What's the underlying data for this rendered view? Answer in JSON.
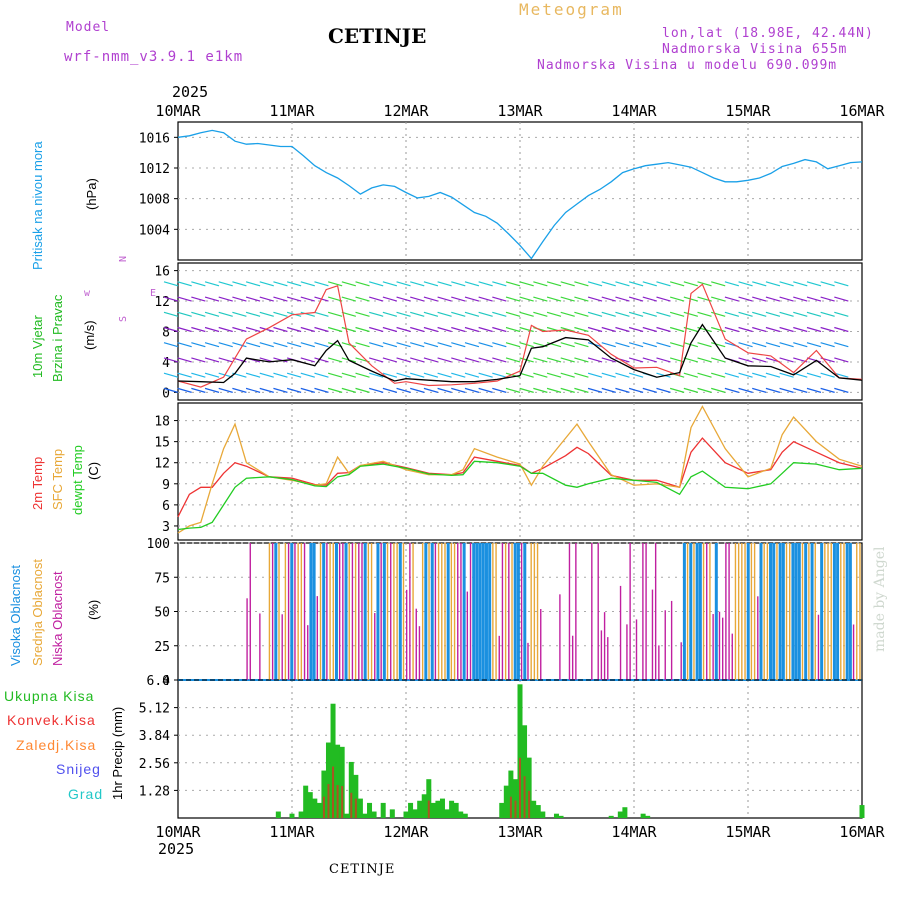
{
  "header": {
    "model_label": "Model",
    "model_name": "wrf-nmm_v3.9.1 e1km",
    "station": "CETINJE",
    "chart_kind": "Meteogram",
    "lonlat": "lon,lat (18.98E, 42.44N)",
    "altitude": "Nadmorska Visina 655m",
    "model_altitude": "Nadmorska Visina u modelu 690.099m",
    "year_top": "2025",
    "year_bottom": "2025",
    "footer_station": "CETINJE",
    "watermark": "made by Angel"
  },
  "panel_labels": {
    "pressure": "Pritisak na nivou mora",
    "pressure_unit": "(hPa)",
    "wind_a": "10m Vjetar",
    "wind_b": "Brzina i Pravac",
    "wind_unit": "(m/s)",
    "temp_a": "2m Temp",
    "temp_b": "SFC Temp",
    "temp_c": "dewpt Temp",
    "temp_unit": "(C)",
    "cloud_a": "Visoka Oblacnost",
    "cloud_b": "Srednja Oblacnost",
    "cloud_c": "Niska Oblacnost",
    "cloud_unit": "(%)",
    "precip_unit": "1hr Precip (mm)",
    "compass_n": "N",
    "compass_s": "S",
    "compass_w": "w",
    "compass_e": "E"
  },
  "precip_legend": [
    {
      "label": "Ukupna Kisa",
      "color": "#22bb22"
    },
    {
      "label": "Konvek.Kisa",
      "color": "#ee3333"
    },
    {
      "label": "Zaledj.Kisa",
      "color": "#ff8833"
    },
    {
      "label": "Snijeg",
      "color": "#5050ee"
    },
    {
      "label": "Grad",
      "color": "#22c8c8"
    }
  ],
  "colors": {
    "pressure": "#1aa0e8",
    "t2m": "#ee3333",
    "tsfc": "#e8a838",
    "dewpt": "#22cc22",
    "wind_speed": "#000000",
    "gust": "#ee4444",
    "cloud_high": "#1a90e0",
    "cloud_mid": "#e8a838",
    "cloud_low": "#c020a0"
  },
  "chart_data": {
    "type": "line",
    "x_labels": [
      "10MAR",
      "11MAR",
      "12MAR",
      "13MAR",
      "14MAR",
      "15MAR",
      "16MAR"
    ],
    "panels": [
      {
        "name": "pressure",
        "ylim": [
          1000,
          1018
        ],
        "yticks": [
          "1004",
          "1008",
          "1012",
          "1016"
        ],
        "series": [
          {
            "x": [
              0,
              0.1,
              0.2,
              0.3,
              0.4,
              0.5,
              0.6,
              0.7,
              0.8,
              0.9,
              1.0,
              1.1,
              1.2,
              1.3,
              1.4,
              1.5,
              1.6,
              1.7,
              1.8,
              1.9,
              2.0,
              2.1,
              2.2,
              2.3,
              2.4,
              2.5,
              2.6,
              2.7,
              2.8,
              2.9,
              3.0,
              3.1,
              3.2,
              3.3,
              3.4,
              3.5,
              3.6,
              3.7,
              3.8,
              3.9,
              4.0,
              4.1,
              4.2,
              4.3,
              4.4,
              4.5,
              4.6,
              4.7,
              4.8,
              4.9,
              5.0,
              5.1,
              5.2,
              5.3,
              5.4,
              5.5,
              5.6,
              5.7,
              5.8,
              5.9,
              6.0
            ],
            "y": [
              1016,
              1016.2,
              1016.6,
              1016.9,
              1016.6,
              1015.5,
              1015.1,
              1015.2,
              1015,
              1014.8,
              1014.8,
              1013.6,
              1012.3,
              1011.4,
              1010.7,
              1009.7,
              1008.6,
              1009.4,
              1009.8,
              1009.6,
              1008.8,
              1008.1,
              1008.3,
              1008.8,
              1008.2,
              1007.2,
              1006.2,
              1005.7,
              1004.8,
              1003.4,
              1001.9,
              1000.2,
              1002.4,
              1004.5,
              1006.2,
              1007.3,
              1008.4,
              1009.2,
              1010.2,
              1011.4,
              1011.9,
              1012.3,
              1012.5,
              1012.7,
              1012.4,
              1012.1,
              1011.4,
              1010.7,
              1010.2,
              1010.2,
              1010.4,
              1010.7,
              1011.3,
              1012.2,
              1012.6,
              1013.1,
              1012.8,
              1011.9,
              1012.3,
              1012.7,
              1012.8
            ]
          }
        ]
      },
      {
        "name": "wind",
        "ylim": [
          -1,
          17
        ],
        "yticks": [
          "0",
          "4",
          "8",
          "12",
          "16"
        ],
        "series": [
          {
            "name": "speed",
            "x": [
              0,
              0.2,
              0.4,
              0.5,
              0.6,
              0.8,
              1.0,
              1.2,
              1.3,
              1.4,
              1.5,
              1.7,
              1.9,
              2.0,
              2.2,
              2.4,
              2.6,
              2.8,
              3.0,
              3.1,
              3.2,
              3.4,
              3.6,
              3.8,
              4.0,
              4.2,
              4.4,
              4.5,
              4.6,
              4.8,
              5.0,
              5.2,
              5.4,
              5.6,
              5.8,
              6.0
            ],
            "y": [
              1.5,
              1.4,
              1.3,
              2.5,
              4.5,
              4.0,
              4.3,
              3.5,
              5.5,
              6.8,
              4.2,
              2.8,
              1.5,
              1.8,
              1.6,
              1.4,
              1.4,
              1.7,
              2.2,
              5.8,
              6.0,
              7.2,
              6.9,
              4.5,
              3.0,
              2.0,
              2.6,
              6.5,
              8.9,
              4.5,
              3.5,
              3.4,
              2.3,
              4.2,
              1.9,
              1.6
            ]
          },
          {
            "name": "gust",
            "x": [
              0,
              0.2,
              0.4,
              0.5,
              0.6,
              0.8,
              1.0,
              1.2,
              1.3,
              1.4,
              1.5,
              1.7,
              1.9,
              2.0,
              2.2,
              2.4,
              2.6,
              2.8,
              3.0,
              3.1,
              3.2,
              3.4,
              3.6,
              3.8,
              4.0,
              4.2,
              4.4,
              4.5,
              4.6,
              4.8,
              5.0,
              5.2,
              5.4,
              5.6,
              5.8,
              6.0
            ],
            "y": [
              1.5,
              0.7,
              2.0,
              4.5,
              7.0,
              8.5,
              10.2,
              10.5,
              13.5,
              14.0,
              6.5,
              3.5,
              1.2,
              1.4,
              0.9,
              1.0,
              1.2,
              1.5,
              2.8,
              8.8,
              8.0,
              8.2,
              7.5,
              5.0,
              3.2,
              3.3,
              2.2,
              13.0,
              14.2,
              7.0,
              5.2,
              4.8,
              2.6,
              5.5,
              1.9,
              1.7
            ]
          }
        ]
      },
      {
        "name": "temperature",
        "ylim": [
          1,
          20.5
        ],
        "yticks": [
          "3",
          "6",
          "9",
          "12",
          "15",
          "18"
        ],
        "series": [
          {
            "name": "t2m",
            "x": [
              0,
              0.1,
              0.2,
              0.3,
              0.4,
              0.5,
              0.6,
              0.8,
              1.0,
              1.2,
              1.3,
              1.4,
              1.5,
              1.6,
              1.8,
              2.0,
              2.2,
              2.4,
              2.5,
              2.6,
              2.8,
              3.0,
              3.1,
              3.2,
              3.4,
              3.5,
              3.6,
              3.8,
              4.0,
              4.2,
              4.4,
              4.5,
              4.6,
              4.8,
              5.0,
              5.2,
              5.3,
              5.4,
              5.6,
              5.8,
              6.0
            ],
            "y": [
              4.3,
              7.5,
              8.5,
              8.5,
              10.5,
              12.0,
              11.5,
              10.0,
              9.8,
              8.9,
              8.8,
              10.5,
              10.6,
              11.6,
              12.0,
              11.3,
              10.5,
              10.3,
              10.6,
              12.8,
              12.2,
              11.6,
              10.5,
              11.2,
              13.0,
              14.2,
              13.3,
              10.2,
              9.5,
              9.5,
              8.5,
              13.5,
              15.5,
              12.0,
              10.5,
              11.0,
              13.5,
              15.0,
              13.5,
              12.0,
              11.2
            ]
          },
          {
            "name": "tsfc",
            "x": [
              0,
              0.1,
              0.2,
              0.3,
              0.4,
              0.5,
              0.6,
              0.8,
              1.0,
              1.2,
              1.3,
              1.4,
              1.5,
              1.6,
              1.8,
              2.0,
              2.2,
              2.4,
              2.5,
              2.6,
              2.8,
              3.0,
              3.1,
              3.2,
              3.4,
              3.5,
              3.6,
              3.8,
              4.0,
              4.2,
              4.4,
              4.5,
              4.6,
              4.8,
              5.0,
              5.2,
              5.3,
              5.4,
              5.6,
              5.8,
              6.0
            ],
            "y": [
              2.0,
              3.0,
              3.5,
              9.0,
              14.0,
              17.5,
              12.0,
              10.0,
              9.5,
              8.8,
              9.0,
              12.8,
              10.5,
              11.6,
              12.2,
              11.0,
              10.3,
              10.3,
              11.0,
              14.0,
              12.8,
              11.8,
              8.8,
              11.5,
              15.5,
              17.5,
              15.0,
              10.3,
              8.8,
              9.0,
              8.5,
              17.0,
              20.0,
              14.0,
              10.0,
              11.2,
              16.0,
              18.5,
              15.0,
              12.5,
              11.5
            ]
          },
          {
            "name": "dewpt",
            "x": [
              0,
              0.1,
              0.2,
              0.3,
              0.4,
              0.5,
              0.6,
              0.8,
              1.0,
              1.2,
              1.3,
              1.4,
              1.5,
              1.6,
              1.8,
              2.0,
              2.2,
              2.4,
              2.5,
              2.6,
              2.8,
              3.0,
              3.1,
              3.2,
              3.4,
              3.5,
              3.6,
              3.8,
              4.0,
              4.2,
              4.4,
              4.5,
              4.6,
              4.8,
              5.0,
              5.2,
              5.3,
              5.4,
              5.6,
              5.8,
              6.0
            ],
            "y": [
              2.5,
              2.7,
              2.8,
              3.5,
              6.0,
              8.5,
              9.8,
              10.0,
              9.6,
              8.7,
              8.6,
              10.0,
              10.3,
              11.5,
              11.8,
              11.2,
              10.4,
              10.2,
              10.3,
              12.2,
              12.0,
              11.5,
              10.5,
              10.5,
              8.8,
              8.5,
              9.0,
              9.8,
              9.5,
              9.2,
              7.5,
              10.0,
              10.8,
              8.5,
              8.3,
              9.0,
              10.5,
              12.0,
              11.8,
              11.0,
              11.2
            ]
          }
        ]
      },
      {
        "name": "cloud",
        "ylim": [
          0,
          100
        ],
        "yticks": [
          "0",
          "25",
          "50",
          "75",
          "100"
        ],
        "note": "dense vertical bars; most columns at 100% in overcast periods"
      },
      {
        "name": "precip",
        "ylim": [
          0,
          6.4
        ],
        "yticks": [
          "1.28",
          "2.56",
          "3.84",
          "5.12",
          "6.4"
        ],
        "series": [
          {
            "name": "Ukupna Kisa",
            "x": [
              0.88,
              1.0,
              1.08,
              1.12,
              1.16,
              1.2,
              1.24,
              1.28,
              1.32,
              1.36,
              1.4,
              1.44,
              1.48,
              1.52,
              1.56,
              1.6,
              1.64,
              1.68,
              1.72,
              1.8,
              1.88,
              2.0,
              2.04,
              2.08,
              2.12,
              2.16,
              2.2,
              2.24,
              2.28,
              2.32,
              2.36,
              2.4,
              2.44,
              2.48,
              2.52,
              2.84,
              2.88,
              2.92,
              2.96,
              3.0,
              3.04,
              3.08,
              3.12,
              3.16,
              3.2,
              3.32,
              3.36,
              3.8,
              3.88,
              3.92,
              4.08,
              4.12,
              6.0
            ],
            "y": [
              0.3,
              0.2,
              0.3,
              1.5,
              1.2,
              0.9,
              0.7,
              2.2,
              3.5,
              5.3,
              3.4,
              3.3,
              0.2,
              2.6,
              2.0,
              0.9,
              0.2,
              0.7,
              0.3,
              0.7,
              0.4,
              0.3,
              0.7,
              0.4,
              0.8,
              1.1,
              1.8,
              0.7,
              0.8,
              0.9,
              0.4,
              0.8,
              0.7,
              0.3,
              0.2,
              0.7,
              1.5,
              2.2,
              1.8,
              6.2,
              4.3,
              2.8,
              0.8,
              0.6,
              0.3,
              0.2,
              0.1,
              0.1,
              0.3,
              0.5,
              0.2,
              0.1,
              0.6
            ]
          }
        ]
      }
    ]
  }
}
